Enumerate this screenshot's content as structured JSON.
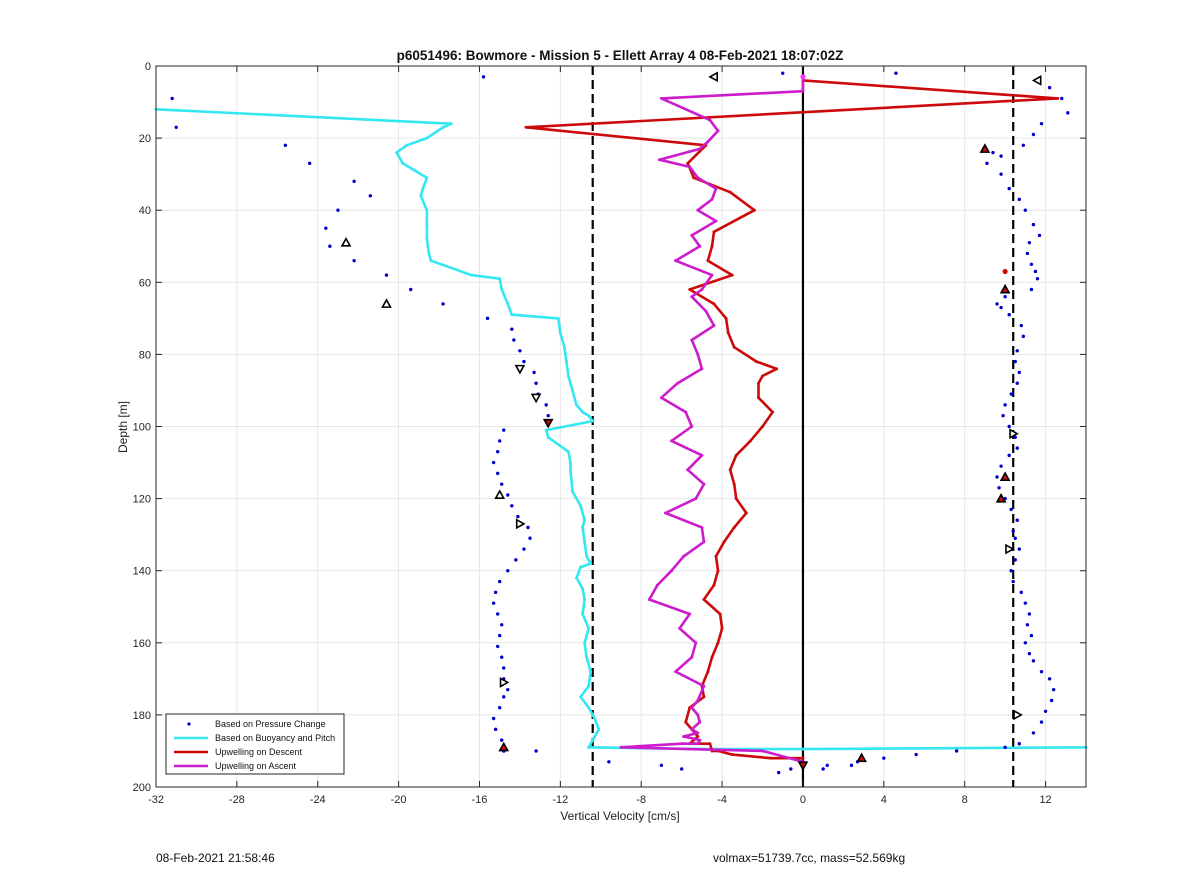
{
  "chart_data": {
    "type": "scatter",
    "title": "p6051496: Bowmore - Mission 5 - Ellett Array 4 08-Feb-2021 18:07:02Z",
    "xlabel": "Vertical Velocity [cm/s]",
    "ylabel": "Depth [m]",
    "xlim": [
      -32,
      14
    ],
    "ylim": [
      0,
      200
    ],
    "y_reversed": true,
    "grid": true,
    "xticks": [
      -32,
      -28,
      -24,
      -20,
      -16,
      -12,
      -8,
      -4,
      0,
      4,
      8,
      12
    ],
    "yticks": [
      0,
      20,
      40,
      60,
      80,
      100,
      120,
      140,
      160,
      180,
      200
    ],
    "xtick_labels": [
      "-32",
      "-28",
      "-24",
      "-20",
      "-16",
      "-12",
      "-8",
      "-4",
      "0",
      "4",
      "8",
      "12"
    ],
    "ytick_labels": [
      "0",
      "20",
      "40",
      "60",
      "80",
      "100",
      "120",
      "140",
      "160",
      "180",
      "200"
    ],
    "legend_position": "bottom-left",
    "reference_lines": [
      {
        "x": -10.4,
        "style": "dashed",
        "color": "#000000"
      },
      {
        "x": 10.4,
        "style": "dashed",
        "color": "#000000"
      },
      {
        "x": 0,
        "style": "solid",
        "color": "#000000"
      }
    ],
    "series": [
      {
        "name": "Based on Pressure Change",
        "kind": "dots",
        "color": "#0000cc",
        "x": [
          -31.2,
          -31.0,
          -15.8,
          -25.6,
          -24.4,
          -22.2,
          -21.4,
          -23.0,
          -23.6,
          -23.4,
          -22.2,
          -20.6,
          -19.4,
          -17.8,
          -15.6,
          -14.4,
          -14.3,
          -14.0,
          -13.8,
          -13.3,
          -13.2,
          -13.1,
          -12.7,
          -12.6,
          -14.8,
          -15.0,
          -15.1,
          -15.3,
          -15.1,
          -14.9,
          -14.6,
          -14.4,
          -14.1,
          -13.6,
          -13.5,
          -13.8,
          -14.2,
          -14.6,
          -15.0,
          -15.2,
          -15.3,
          -15.1,
          -14.9,
          -15.0,
          -15.1,
          -14.9,
          -14.8,
          -14.8,
          -14.6,
          -14.8,
          -15.0,
          -15.3,
          -15.2,
          -14.9,
          -14.8,
          -14.8,
          -13.2,
          -9.6,
          -7.0,
          -6.0,
          -1.2,
          -0.6,
          1.0,
          1.2,
          2.4,
          2.7,
          4.0,
          5.6,
          7.6,
          10.0,
          4.6,
          -1.0,
          12.2,
          12.8,
          13.1,
          11.8,
          11.4,
          10.9,
          9.8,
          9.1,
          9.4,
          9.8,
          10.2,
          10.7,
          11.0,
          11.4,
          11.7,
          11.2,
          11.1,
          11.3,
          11.5,
          11.6,
          11.3,
          10.0,
          9.6,
          9.8,
          10.2,
          10.8,
          10.9,
          10.6,
          10.5,
          10.7,
          10.6,
          10.3,
          10.0,
          9.9,
          10.2,
          10.5,
          10.6,
          10.2,
          9.8,
          9.6,
          9.7,
          10.0,
          10.3,
          10.6,
          10.4,
          10.5,
          10.7,
          10.5,
          10.3,
          10.4,
          10.8,
          11.0,
          11.2,
          11.1,
          11.3,
          11.0,
          11.2,
          11.4,
          11.8,
          12.2,
          12.4,
          12.3,
          12.0,
          11.8,
          11.4,
          10.7
        ],
        "y": [
          9,
          17,
          3,
          22,
          27,
          32,
          36,
          40,
          45,
          50,
          54,
          58,
          62,
          66,
          70,
          73,
          76,
          79,
          82,
          85,
          88,
          91,
          94,
          97,
          101,
          104,
          107,
          110,
          113,
          116,
          119,
          122,
          125,
          128,
          131,
          134,
          137,
          140,
          143,
          146,
          149,
          152,
          155,
          158,
          161,
          164,
          167,
          170,
          173,
          175,
          178,
          181,
          184,
          187,
          190,
          190,
          190,
          193,
          194,
          195,
          196,
          195,
          195,
          194,
          194,
          193,
          192,
          191,
          190,
          189,
          2,
          2,
          6,
          9,
          13,
          16,
          19,
          22,
          25,
          27,
          24,
          30,
          34,
          37,
          40,
          44,
          47,
          49,
          52,
          55,
          57,
          59,
          62,
          64,
          66,
          67,
          69,
          72,
          75,
          79,
          82,
          85,
          88,
          91,
          94,
          97,
          100,
          103,
          106,
          108,
          111,
          114,
          117,
          120,
          123,
          126,
          129,
          131,
          134,
          137,
          140,
          143,
          146,
          149,
          152,
          155,
          158,
          160,
          163,
          165,
          168,
          170,
          173,
          176,
          179,
          182,
          185,
          188
        ]
      },
      {
        "name": "Based on Buoyancy and Pitch",
        "kind": "line",
        "color": "#33e8f0",
        "x": [
          -32,
          -17.4,
          -17.8,
          -18.6,
          -19.6,
          -20.1,
          -19.8,
          -18.6,
          -18.8,
          -18.9,
          -18.6,
          -18.6,
          -18.6,
          -18.5,
          -18.4,
          -16.4,
          -15.0,
          -14.9,
          -14.6,
          -14.4,
          -12.1,
          -12.0,
          -11.8,
          -11.7,
          -11.6,
          -11.4,
          -11.2,
          -10.9,
          -10.6,
          -10.4,
          -12.7,
          -12.6,
          -11.6,
          -11.5,
          -11.5,
          -11.4,
          -11.0,
          -10.8,
          -10.9,
          -10.8,
          -10.7,
          -10.5,
          -11.0,
          -11.2,
          -10.9,
          -10.8,
          -10.9,
          -10.6,
          -10.8,
          -10.7,
          -10.5,
          -10.6,
          -11.0,
          -10.6,
          -10.3,
          -10.1,
          -10.3,
          -10.6,
          -5.0,
          0.0,
          14.0
        ],
        "y": [
          12,
          16,
          17,
          20,
          22,
          24,
          27,
          31,
          34,
          36,
          40,
          44,
          48,
          52,
          54,
          58,
          59,
          62,
          66,
          69,
          70,
          74,
          78,
          82,
          86,
          90,
          94,
          96,
          97,
          98.5,
          101,
          103,
          107,
          110,
          112,
          118,
          122,
          126,
          128,
          132,
          136,
          138,
          139,
          142,
          145,
          148,
          152,
          156,
          160,
          164,
          168,
          172,
          175,
          178,
          181,
          184,
          186,
          189,
          189.5,
          189.5,
          189
        ]
      },
      {
        "name": "Upwelling on Descent",
        "kind": "line",
        "color": "#cc0a0a",
        "x": [
          0,
          12.6,
          -13.7,
          -4.8,
          -5.7,
          -5.4,
          -3.6,
          -2.4,
          -4.4,
          -4.5,
          -4.7,
          -3.5,
          -5.6,
          -4.4,
          -3.8,
          -3.7,
          -3.4,
          -2.3,
          -1.3,
          -2.0,
          -2.2,
          -2.2,
          -1.5,
          -2.0,
          -2.6,
          -3.3,
          -3.6,
          -3.4,
          -3.3,
          -2.8,
          -3.4,
          -3.9,
          -4.3,
          -4.2,
          -4.4,
          -4.9,
          -4.1,
          -4.0,
          -4.2,
          -4.5,
          -4.7,
          -5.0,
          -4.9,
          -5.6,
          -5.8,
          -5.2,
          -5.6,
          -4.6,
          -4.5,
          -4.2,
          -3.5,
          -1.6,
          0
        ],
        "y": [
          4,
          9,
          17,
          22,
          27,
          31,
          35,
          40,
          46,
          50,
          54,
          58,
          62,
          66,
          70,
          74,
          78,
          82,
          84,
          86,
          88,
          92,
          96,
          100,
          104,
          108,
          112,
          116,
          120,
          124,
          128,
          132,
          136,
          140,
          144,
          148,
          152,
          156,
          160,
          164,
          168,
          172,
          175,
          178,
          182,
          186,
          188,
          188,
          190,
          190,
          191,
          192,
          192
        ]
      },
      {
        "name": "Upwelling on Ascent",
        "kind": "line",
        "color": "#cc1ccc",
        "x": [
          0,
          0,
          -7.0,
          -4.6,
          -4.2,
          -4.7,
          -5.1,
          -7.1,
          -5.6,
          -5.2,
          -4.3,
          -4.5,
          -5.2,
          -4.3,
          -5.5,
          -5.1,
          -6.3,
          -4.5,
          -5.0,
          -5.5,
          -4.8,
          -4.4,
          -5.5,
          -5.2,
          -5.0,
          -6.2,
          -7.0,
          -5.8,
          -5.5,
          -6.5,
          -5.0,
          -5.7,
          -4.9,
          -5.3,
          -6.8,
          -5.0,
          -4.9,
          -5.9,
          -6.5,
          -7.2,
          -7.6,
          -5.6,
          -6.1,
          -5.3,
          -5.5,
          -6.3,
          -4.9,
          -5.2,
          -5.5,
          -5.2,
          -5.1,
          -5.5,
          -5.2,
          -5.9,
          -5.1,
          -5.2,
          -5.3,
          -6.0,
          -9.0,
          -2.0,
          0
        ],
        "y": [
          3,
          7,
          9,
          15,
          18,
          21,
          23,
          26,
          28,
          31,
          34,
          37,
          40,
          43,
          47,
          50,
          54,
          58,
          62,
          64,
          68,
          72,
          76,
          80,
          84,
          88,
          92,
          96,
          100,
          104,
          108,
          112,
          116,
          120,
          124,
          128,
          132,
          136,
          140,
          144,
          148,
          152,
          156,
          160,
          164,
          168,
          172,
          176,
          178,
          180,
          182,
          184,
          185,
          186,
          187,
          188,
          188,
          188,
          189,
          190,
          193
        ]
      }
    ],
    "markers": [
      {
        "x": -4.4,
        "y": 3,
        "shape": "left"
      },
      {
        "x": 11.6,
        "y": 4,
        "shape": "left"
      },
      {
        "x": 9.0,
        "y": 23,
        "shape": "up",
        "fill": "#cc0a0a"
      },
      {
        "x": -22.6,
        "y": 49,
        "shape": "up"
      },
      {
        "x": -20.6,
        "y": 66,
        "shape": "up"
      },
      {
        "x": 10.0,
        "y": 62,
        "shape": "up",
        "fill": "#cc0a0a"
      },
      {
        "x": -14.0,
        "y": 84,
        "shape": "down"
      },
      {
        "x": -13.2,
        "y": 92,
        "shape": "down"
      },
      {
        "x": -12.6,
        "y": 99,
        "shape": "down",
        "fill": "#cc0a0a"
      },
      {
        "x": 10.4,
        "y": 102,
        "shape": "right"
      },
      {
        "x": -15.0,
        "y": 119,
        "shape": "up"
      },
      {
        "x": 10.0,
        "y": 114,
        "shape": "up",
        "fill": "#cc0a0a"
      },
      {
        "x": 9.8,
        "y": 120,
        "shape": "up",
        "fill": "#cc0a0a"
      },
      {
        "x": -14.0,
        "y": 127,
        "shape": "right"
      },
      {
        "x": 10.2,
        "y": 134,
        "shape": "right"
      },
      {
        "x": -14.8,
        "y": 171,
        "shape": "right"
      },
      {
        "x": 10.6,
        "y": 180,
        "shape": "right"
      },
      {
        "x": -14.8,
        "y": 189,
        "shape": "up",
        "fill": "#cc0a0a"
      },
      {
        "x": 2.9,
        "y": 192,
        "shape": "up",
        "fill": "#cc0a0a"
      },
      {
        "x": 0.0,
        "y": 194,
        "shape": "down",
        "fill": "#cc0a0a"
      }
    ],
    "highlight_points": [
      {
        "x": 0,
        "y": 3,
        "color": "#ff33ff"
      },
      {
        "x": 10.0,
        "y": 57,
        "color": "#cc0a0a"
      }
    ]
  },
  "footer": {
    "timestamp": "08-Feb-2021 21:58:46",
    "stats": "volmax=51739.7cc, mass=52.569kg"
  }
}
